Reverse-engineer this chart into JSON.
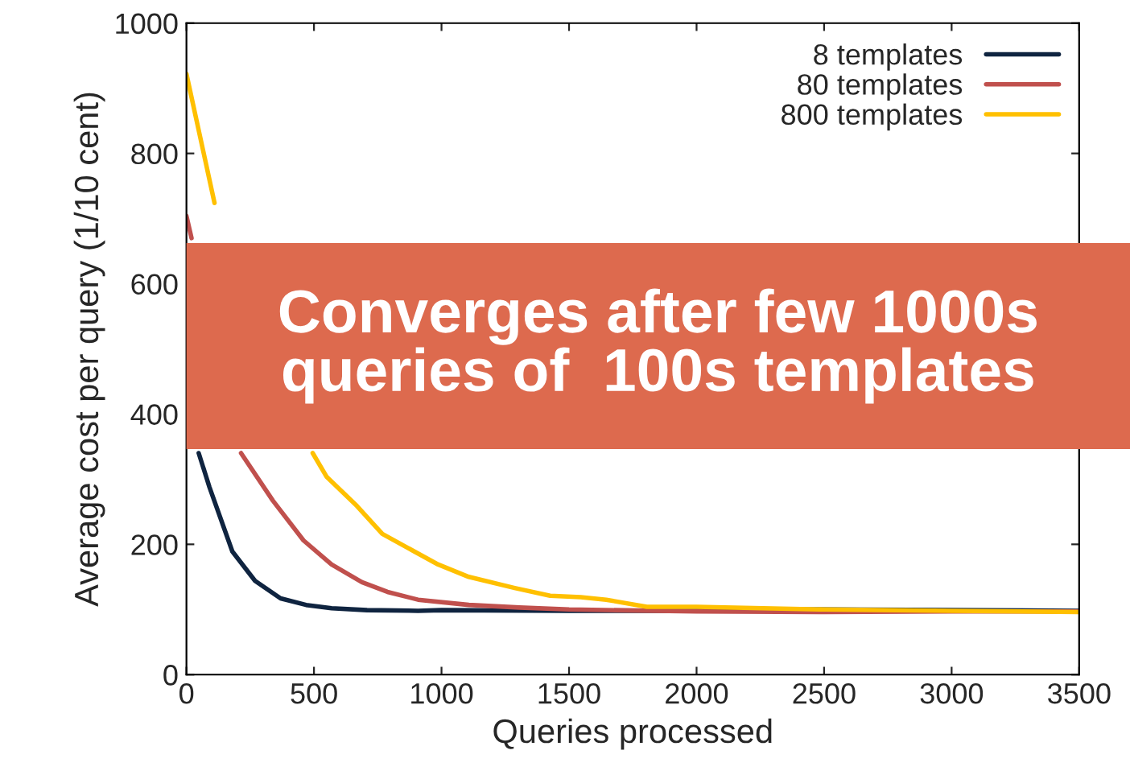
{
  "chart_data": {
    "type": "line",
    "xlabel": "Queries processed",
    "ylabel": "Average cost per query (1/10 cent)",
    "xlim": [
      0,
      3500
    ],
    "xticks": [
      0,
      500,
      1000,
      1500,
      2000,
      2500,
      3000,
      3500
    ],
    "ylim": [
      0,
      1000
    ],
    "yticks": [
      0,
      200,
      400,
      600,
      800,
      1000
    ],
    "legend": "top right",
    "grid": false,
    "marker": "none",
    "line_style": "solid",
    "series": [
      {
        "name": "8 templates",
        "color": "#0f2440",
        "x": [
          48,
          90,
          180,
          269,
          369,
          469,
          569,
          708,
          908,
          1000,
          1500,
          2000,
          2500,
          3000,
          3500
        ],
        "values": [
          340,
          288,
          189,
          144,
          117,
          107,
          102,
          99,
          98,
          99,
          98,
          98,
          100,
          99,
          98
        ]
      },
      {
        "name": "80 templates",
        "color": "#c0504d",
        "x": [
          0,
          20,
          100,
          214,
          339,
          459,
          569,
          688,
          788,
          908,
          1107,
          1305,
          1500,
          2000,
          2500,
          3000,
          3500
        ],
        "values": [
          704,
          670,
          null,
          340,
          267,
          206,
          169,
          142,
          127,
          115,
          107,
          103,
          100,
          97,
          96,
          97,
          97
        ]
      },
      {
        "name": "800 templates",
        "color": "#ffc000",
        "x": [
          0,
          110,
          300,
          495,
          549,
          668,
          768,
          987,
          1107,
          1287,
          1426,
          1546,
          1646,
          1805,
          2000,
          2500,
          3000,
          3500
        ],
        "values": [
          922,
          724,
          null,
          340,
          304,
          259,
          216,
          169,
          150,
          133,
          121,
          119,
          115,
          104,
          104,
          100,
          98,
          96
        ]
      }
    ],
    "annotations": [
      "Converges after few 1000s\nqueries of  100s templates"
    ]
  }
}
